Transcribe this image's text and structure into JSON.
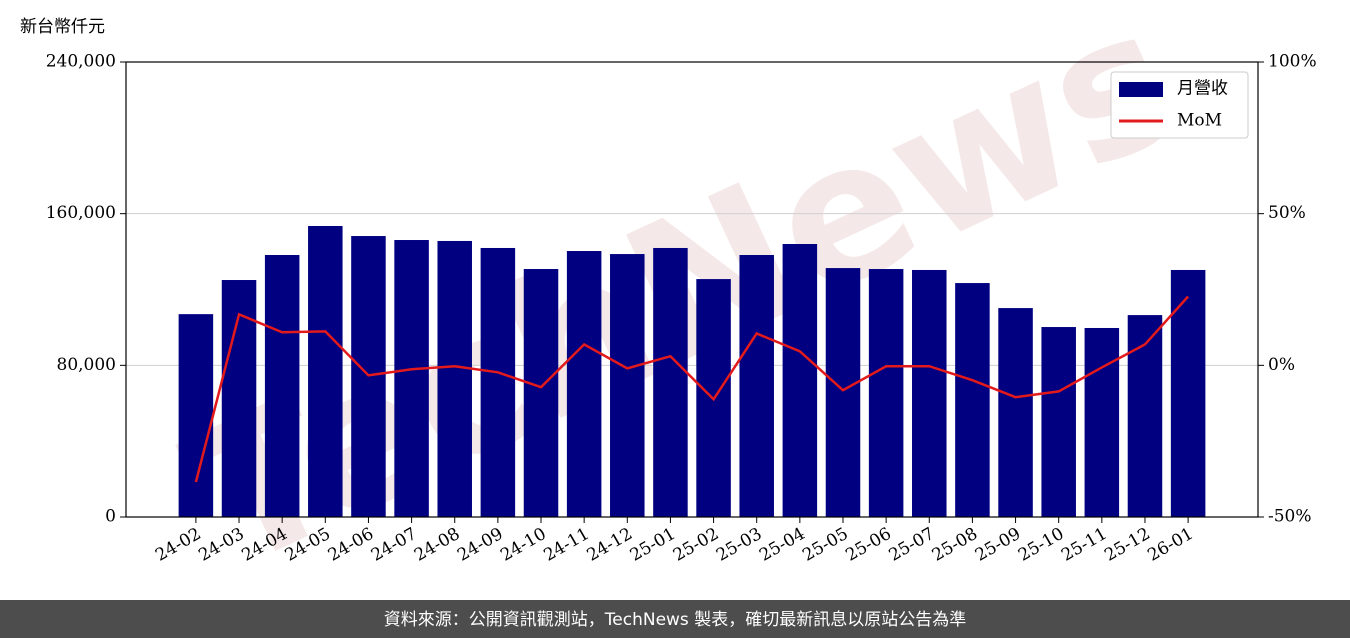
{
  "chart_data": {
    "type": "bar",
    "y_label": "新台幣仟元",
    "watermark": "TechNews",
    "categories": [
      "24-02",
      "24-03",
      "24-04",
      "24-05",
      "24-06",
      "24-07",
      "24-08",
      "24-09",
      "24-10",
      "24-11",
      "24-12",
      "25-01",
      "25-02",
      "25-03",
      "25-04",
      "25-05",
      "25-06",
      "25-07",
      "25-08",
      "25-09",
      "25-10",
      "25-11",
      "25-12",
      "26-01"
    ],
    "series": [
      {
        "name": "月營收",
        "type": "bar",
        "color": "#000080",
        "values": [
          107000,
          125000,
          138200,
          153500,
          148200,
          146100,
          145600,
          141900,
          130800,
          140300,
          138700,
          141900,
          125500,
          138200,
          144000,
          131300,
          130800,
          130300,
          123400,
          110200,
          100200,
          99700,
          106500,
          130300
        ]
      },
      {
        "name": "MoM",
        "type": "line",
        "axis": "y2",
        "color": "#e31a1c",
        "values": [
          -38.5,
          16.8,
          10.9,
          11.2,
          -3.3,
          -1.3,
          -0.3,
          -2.3,
          -7.2,
          6.9,
          -1.0,
          3.0,
          -11.2,
          10.5,
          4.6,
          -8.2,
          -0.3,
          -0.3,
          -4.9,
          -10.5,
          -8.6,
          -0.7,
          6.9,
          22.7
        ]
      }
    ],
    "ylim": [
      0,
      240000
    ],
    "yticks": [
      0,
      {
        "value": 80000,
        "label": "80,000"
      },
      {
        "value": 160000,
        "label": "160,000"
      },
      {
        "value": 240000,
        "label": "240,000"
      }
    ],
    "y2lim": [
      -50,
      100
    ],
    "y2ticks": [
      {
        "value": -50,
        "label": "-50%"
      },
      {
        "value": 0,
        "label": "0%"
      },
      {
        "value": 50,
        "label": "50%"
      },
      {
        "value": 100,
        "label": "100%"
      }
    ],
    "grid": true,
    "legend": "upper right"
  },
  "footer": "資料來源：公開資訊觀測站，TechNews 製表，確切最新訊息以原站公告為準"
}
